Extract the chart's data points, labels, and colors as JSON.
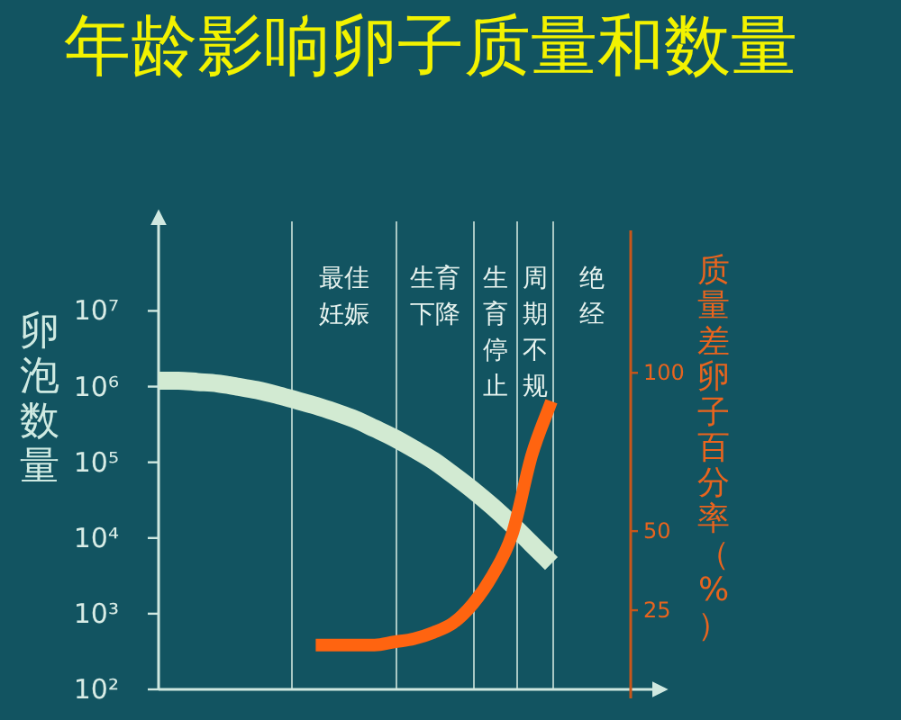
{
  "chart_data": {
    "type": "line",
    "title": "年龄影响卵子质量和数量",
    "ylabel": "卵泡数量",
    "y2label": "质量差卵子百分率（%）",
    "categories": [
      null,
      null,
      null,
      null,
      null,
      null,
      null,
      null,
      null,
      null,
      null,
      null,
      null,
      null,
      null,
      null,
      null,
      null,
      null,
      null,
      null
    ],
    "series": [
      {
        "color": "#d2ead2",
        "values": [
          1200000,
          1200000,
          1150000,
          1100000,
          1000000,
          900000,
          780000,
          660000,
          560000,
          460000,
          370000,
          280000,
          210000,
          150000,
          105000,
          68000,
          43000,
          26000,
          15000,
          8300,
          4600
        ]
      },
      {
        "color": "#ff6410",
        "axis": "y2",
        "values": [
          null,
          null,
          null,
          null,
          null,
          null,
          null,
          null,
          14,
          14,
          14,
          14,
          15,
          16,
          18,
          21,
          27,
          36,
          49,
          74,
          91
        ]
      }
    ],
    "log": "y",
    "ylim": [
      100,
      200000000
    ],
    "yticks": [
      {
        "value": 100,
        "label": "10²"
      },
      {
        "value": 1000,
        "label": "10³"
      },
      {
        "value": 10000,
        "label": "10⁴"
      },
      {
        "value": 100000,
        "label": "10⁵"
      },
      {
        "value": 1000000,
        "label": "10⁶"
      },
      {
        "value": 10000000,
        "label": "10⁷"
      }
    ],
    "y2lim": [
      0,
      145
    ],
    "y2ticks": [
      25,
      50,
      100
    ],
    "grid": "x",
    "annotations": [
      "最佳妊娠",
      "生育下降",
      "生育停止",
      "周期不规",
      "绝经"
    ]
  }
}
